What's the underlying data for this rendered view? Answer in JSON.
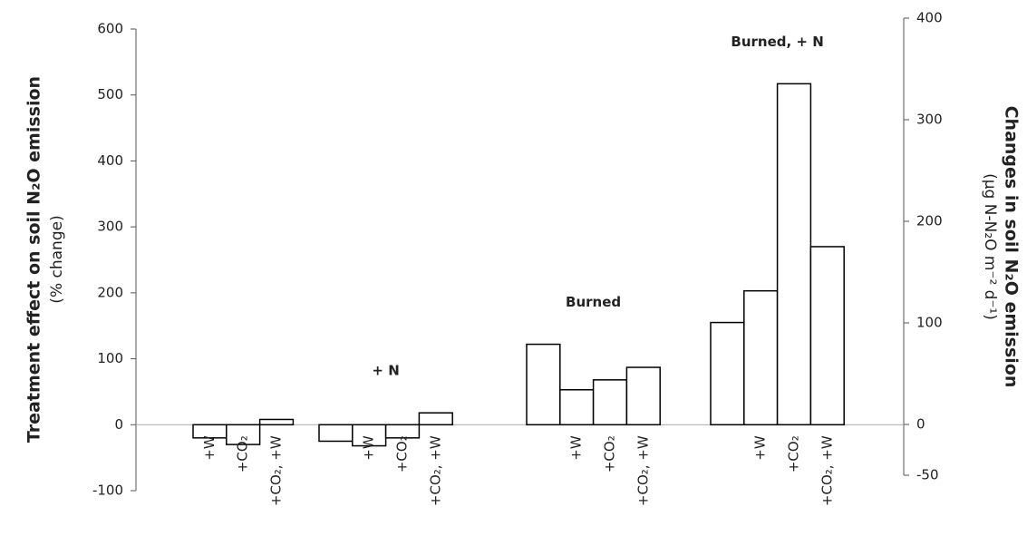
{
  "chart_data": {
    "type": "bar",
    "ylabel": "Treatment effect on soil N₂O emission",
    "ylabel_sub": "(% change)",
    "y2label": "Changes in soil N₂O emission",
    "y2label_sub": "(µg N-N₂O m⁻² d⁻¹)",
    "ylim": [
      -100,
      600
    ],
    "yticks": [
      -100,
      0,
      100,
      200,
      300,
      400,
      500,
      600
    ],
    "y2lim": [
      -50,
      400
    ],
    "y2ticks": [
      -50,
      0,
      100,
      200,
      300,
      400
    ],
    "color": "#ffffff",
    "groups": [
      {
        "categories": [
          "+W",
          "+CO₂",
          "+CO₂, +W"
        ],
        "values": [
          -20,
          -30,
          8
        ]
      },
      {
        "label": "+ N",
        "categories": [
          null,
          "+W",
          "+CO₂",
          "+CO₂, +W"
        ],
        "values": [
          -25,
          -32,
          -20,
          18
        ]
      },
      {
        "label": "Burned",
        "categories": [
          null,
          "+W",
          "+CO₂",
          "+CO₂, +W"
        ],
        "values": [
          122,
          53,
          68,
          87
        ]
      },
      {
        "label": "Burned, + N",
        "categories": [
          null,
          "+W",
          "+CO₂",
          "+CO₂, +W"
        ],
        "values": [
          155,
          203,
          517,
          270
        ]
      }
    ]
  }
}
